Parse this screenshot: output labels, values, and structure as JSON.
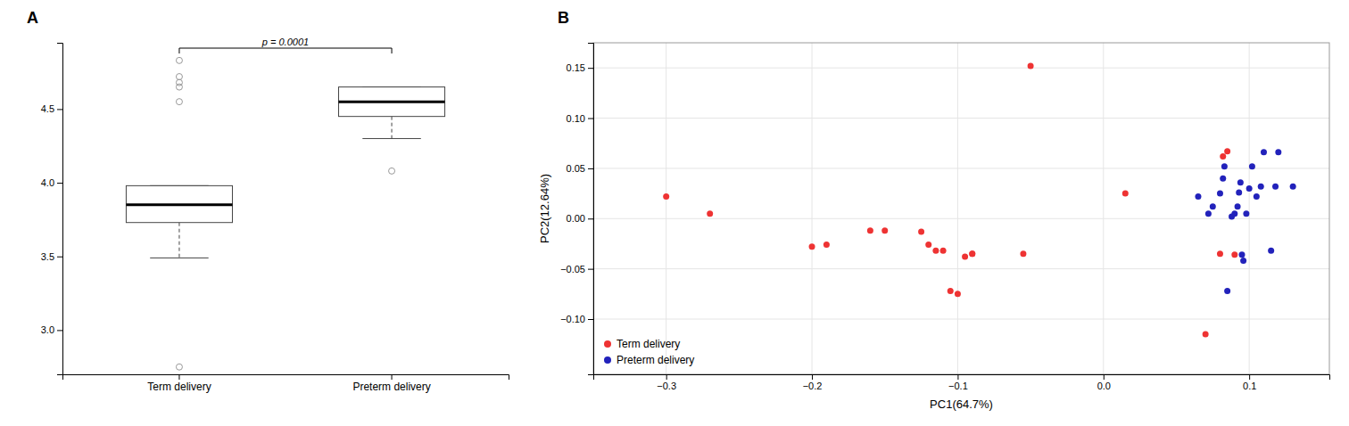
{
  "chart_data": [
    {
      "type": "box",
      "title": "A",
      "categories": [
        "Term delivery",
        "Preterm delivery"
      ],
      "boxes": [
        {
          "median": 3.85,
          "q1": 3.73,
          "q3": 3.98,
          "whisker_low": 3.49,
          "whisker_high": 3.98,
          "outliers": [
            2.75,
            4.55,
            4.65,
            4.68,
            4.72,
            4.83
          ]
        },
        {
          "median": 4.55,
          "q1": 4.45,
          "q3": 4.65,
          "whisker_low": 4.3,
          "whisker_high": 4.65,
          "outliers": [
            4.08
          ]
        }
      ],
      "annotations": [
        "p = 0.0001"
      ],
      "ylim": [
        2.7,
        4.95
      ],
      "yticks": [
        {
          "value": 3.0,
          "label": "3.0"
        },
        3.5,
        {
          "value": 4.0,
          "label": "4.0"
        },
        4.5
      ],
      "grid": false
    },
    {
      "type": "scatter",
      "title": "B",
      "xlabel": "PC1(64.7%)",
      "ylabel": "PC2(12.64%)",
      "series": [
        {
          "name": "Term delivery",
          "color": "#EE3333",
          "x": [
            -0.3,
            -0.27,
            -0.2,
            -0.19,
            -0.16,
            -0.15,
            -0.125,
            -0.12,
            -0.115,
            -0.11,
            -0.105,
            -0.1,
            -0.095,
            -0.09,
            -0.09,
            -0.055,
            -0.05,
            0.015,
            0.07,
            0.08,
            0.082,
            0.085,
            0.09
          ],
          "values": [
            0.022,
            0.005,
            -0.028,
            -0.026,
            -0.012,
            -0.012,
            -0.013,
            -0.026,
            -0.032,
            -0.032,
            -0.072,
            -0.075,
            -0.038,
            -0.035,
            -0.035,
            -0.035,
            0.152,
            0.025,
            -0.115,
            -0.035,
            0.062,
            0.067,
            -0.036
          ]
        },
        {
          "name": "Preterm delivery",
          "color": "#2222BB",
          "x": [
            0.065,
            0.072,
            0.075,
            0.08,
            0.082,
            0.083,
            0.085,
            0.088,
            0.09,
            0.092,
            0.093,
            0.094,
            0.095,
            0.096,
            0.098,
            0.1,
            0.102,
            0.105,
            0.108,
            0.11,
            0.115,
            0.118,
            0.12,
            0.13
          ],
          "values": [
            0.022,
            0.005,
            0.012,
            0.025,
            0.04,
            0.052,
            -0.072,
            0.002,
            0.005,
            0.012,
            0.026,
            0.036,
            -0.036,
            -0.042,
            0.005,
            0.03,
            0.052,
            0.022,
            0.032,
            0.066,
            -0.032,
            0.032,
            0.066,
            0.032
          ]
        }
      ],
      "xlim": [
        -0.35,
        0.155
      ],
      "ylim": [
        -0.155,
        0.175
      ],
      "xticks": [
        {
          "value": -0.3,
          "label": "−0.3"
        },
        {
          "value": -0.2,
          "label": "−0.2"
        },
        {
          "value": -0.1,
          "label": "−0.1"
        },
        {
          "value": 0.0,
          "label": "0.0"
        },
        0.1
      ],
      "yticks": [
        {
          "value": -0.1,
          "label": "−0.10"
        },
        {
          "value": -0.05,
          "label": "−0.05"
        },
        {
          "value": 0.0,
          "label": "0.00"
        },
        {
          "value": 0.05,
          "label": "0.05"
        },
        {
          "value": 0.1,
          "label": "0.10"
        },
        {
          "value": 0.15,
          "label": "0.15"
        }
      ],
      "grid": true,
      "legend": "lower left"
    }
  ]
}
